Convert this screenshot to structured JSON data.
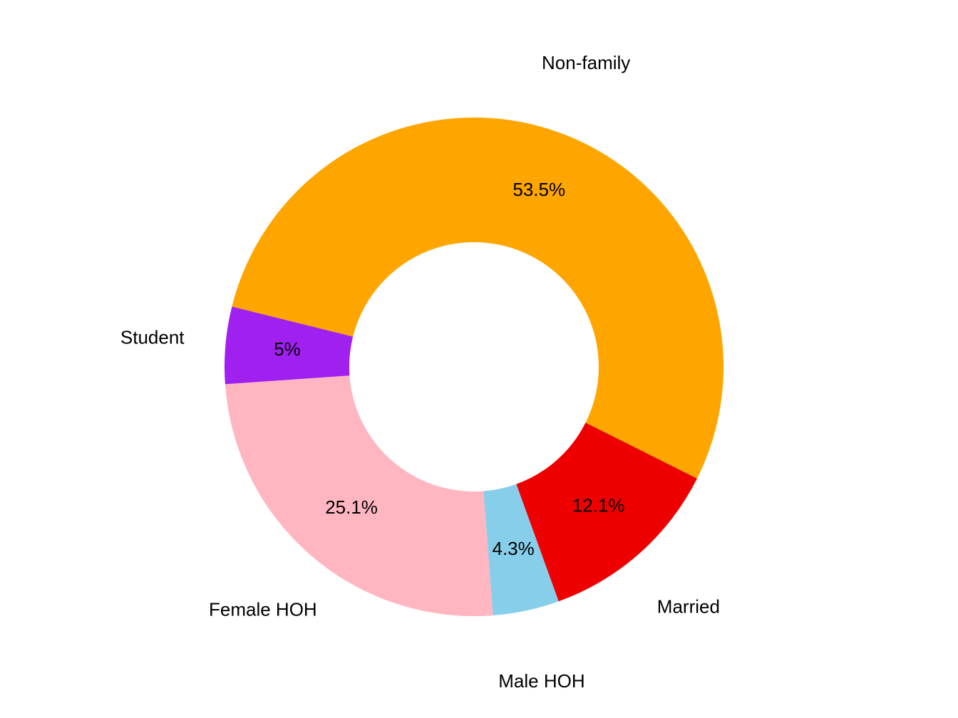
{
  "chart_data": {
    "type": "donut",
    "categories": [
      "Female HOH",
      "Male HOH",
      "Married",
      "Non-family",
      "Student"
    ],
    "values": [
      25.1,
      4.3,
      12.1,
      53.5,
      5
    ],
    "value_labels": [
      "25.1%",
      "4.3%",
      "12.1%",
      "53.5%",
      "5%"
    ],
    "colors": [
      "#FFB6C1",
      "#87CEEB",
      "#EE0000",
      "#FFA500",
      "#A020F0"
    ]
  }
}
